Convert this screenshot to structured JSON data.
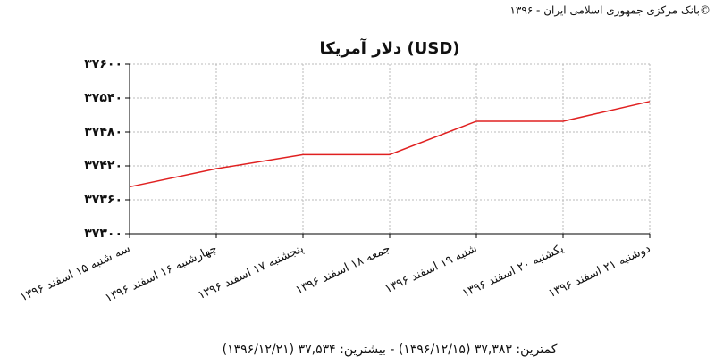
{
  "chart_data": {
    "type": "line",
    "source": "بانک مرکزی جمهوری اسلامی ایران - ۱۳۹۶©",
    "title": "دلار آمریکا (USD)",
    "footer": "کمترین: ۳۷,۳۸۳ (۱۳۹۶/۱۲/۱۵) - بیشترین: ۳۷,۵۳۴ (۱۳۹۶/۱۲/۲۱)",
    "categories": [
      "سه شنبه ۱۵ اسفند ۱۳۹۶",
      "چهارشنبه ۱۶ اسفند ۱۳۹۶",
      "پنجشنبه ۱۷ اسفند ۱۳۹۶",
      "جمعه ۱۸ اسفند ۱۳۹۶",
      "شنبه ۱۹ اسفند ۱۳۹۶",
      "یکشنبه ۲۰ اسفند ۱۳۹۶",
      "دوشنبه ۲۱ اسفند ۱۳۹۶"
    ],
    "values": [
      37383,
      37415,
      37440,
      37440,
      37499,
      37499,
      37534
    ],
    "color": "#e02020",
    "ylim": [
      37300,
      37600
    ],
    "yticks": [
      {
        "value": 37300,
        "label": "۳۷۳۰۰"
      },
      {
        "value": 37360,
        "label": "۳۷۳۶۰"
      },
      {
        "value": 37420,
        "label": "۳۷۴۲۰"
      },
      {
        "value": 37480,
        "label": "۳۷۴۸۰"
      },
      {
        "value": 37540,
        "label": "۳۷۵۴۰"
      },
      {
        "value": 37600,
        "label": "۳۷۶۰۰"
      }
    ],
    "grid": true
  }
}
